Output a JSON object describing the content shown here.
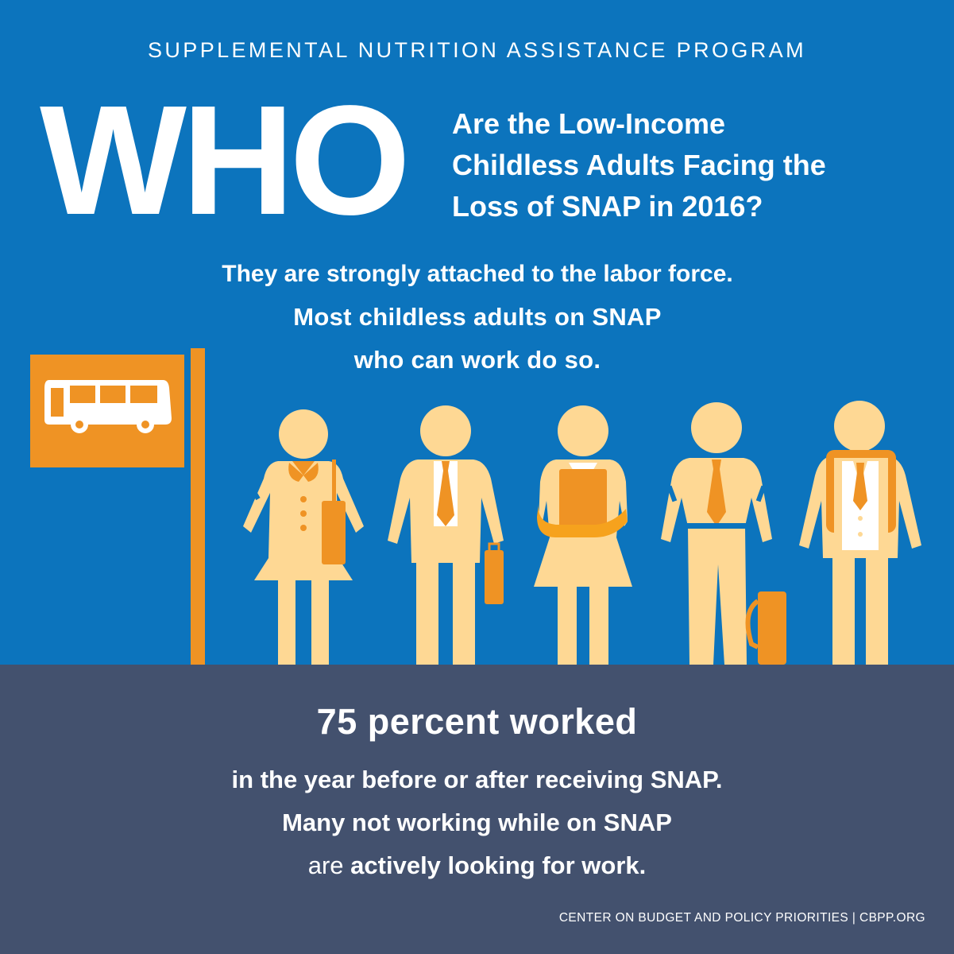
{
  "header": {
    "kicker": "SUPPLEMENTAL NUTRITION ASSISTANCE PROGRAM",
    "who": "WHO",
    "question_lines": [
      "Are the Low-Income",
      "Childless Adults Facing the",
      "Loss of SNAP in 2016?"
    ]
  },
  "lead": {
    "line1": "They are strongly attached to the labor force.",
    "line2": "Most childless adults on SNAP",
    "line3": "who can work do so."
  },
  "stat": {
    "headline": "75 percent worked",
    "line1": "in the year before or after receiving SNAP.",
    "line2": "Many not working while on SNAP",
    "line3_regular": "are",
    "line3_bold": "actively looking for work."
  },
  "credit": "CENTER ON BUDGET AND POLICY PRIORITIES | CBPP.ORG",
  "colors": {
    "blue": "#0c74bd",
    "slate": "#43516e",
    "orange": "#ef9324",
    "skin": "#fed894",
    "white": "#ffffff"
  },
  "icons": [
    "bus-stop-sign-icon",
    "bus-icon",
    "person-icon"
  ]
}
